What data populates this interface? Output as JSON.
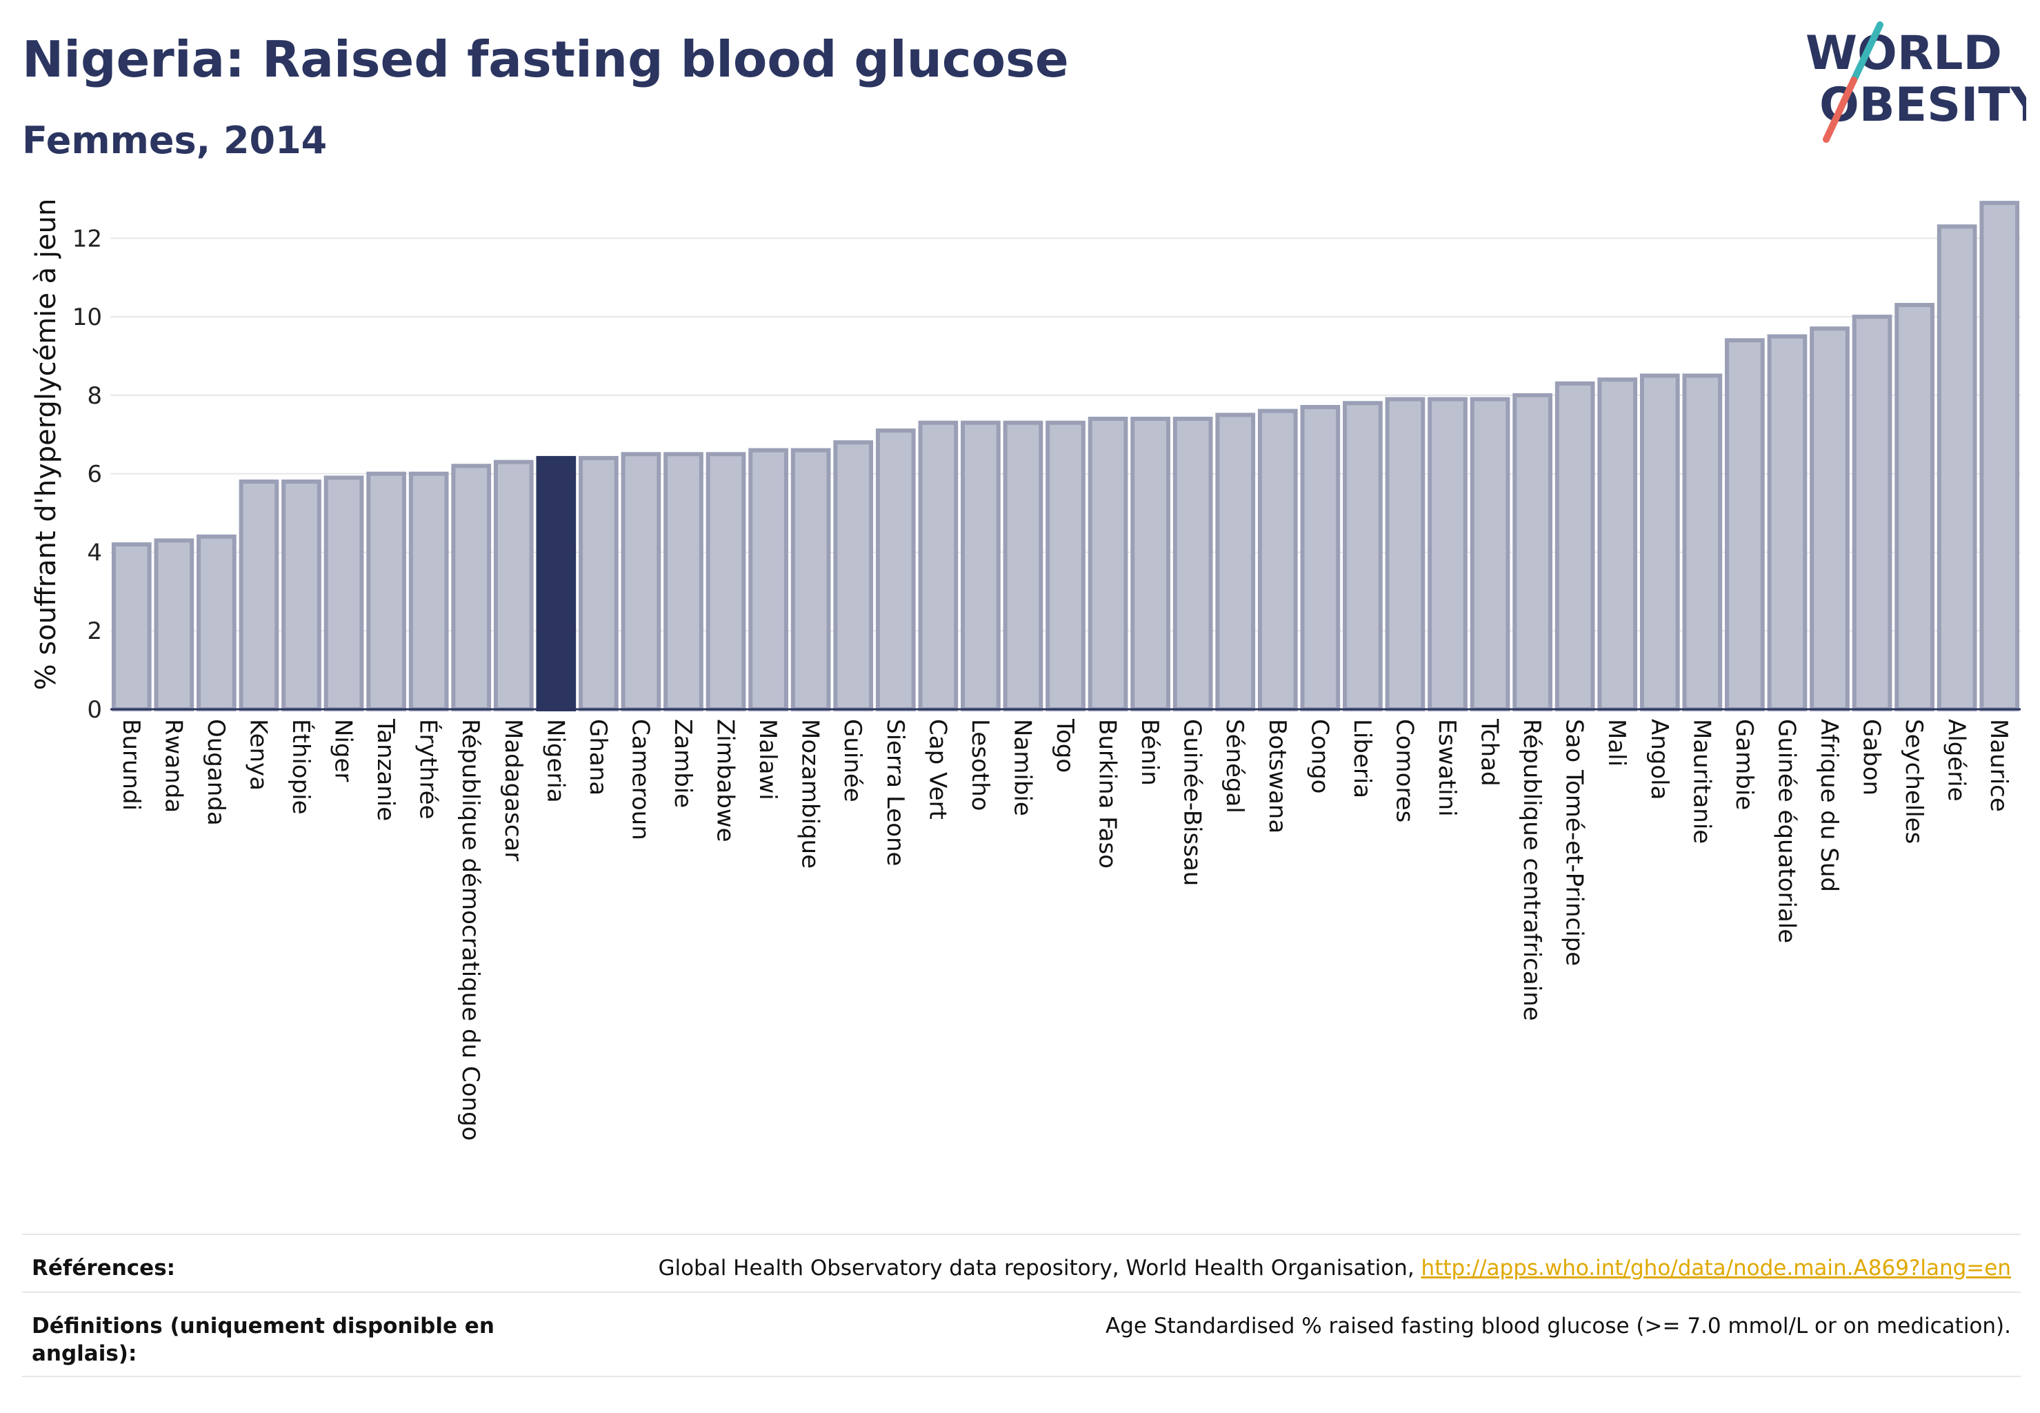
{
  "header": {
    "title": "Nigeria: Raised fasting blood glucose",
    "subtitle": "Femmes, 2014"
  },
  "logo": {
    "line1": "WORLD",
    "line2": "OBESITY",
    "colors": {
      "text": "#2b3560",
      "slash_teal": "#3bb5b8",
      "slash_coral": "#e8675a"
    }
  },
  "colors": {
    "bar_fill": "#bcc0cf",
    "bar_stroke": "#9a9fb6",
    "highlight": "#2b3560",
    "gridline": "#e6e6ea",
    "axis": "#2b3560"
  },
  "chart_data": {
    "type": "bar",
    "title": "Nigeria: Raised fasting blood glucose",
    "subtitle": "Femmes, 2014",
    "xlabel": "",
    "ylabel": "% souffrant d'hyperglycémie à jeun",
    "ylim": [
      0,
      13.5
    ],
    "yticks": [
      0,
      2,
      4,
      6,
      8,
      10,
      12
    ],
    "grid": true,
    "highlight_category": "Nigeria",
    "categories": [
      "Burundi",
      "Rwanda",
      "Ouganda",
      "Kenya",
      "Éthiopie",
      "Niger",
      "Tanzanie",
      "Érythrée",
      "République démocratique du Congo",
      "Madagascar",
      "Nigeria",
      "Ghana",
      "Cameroun",
      "Zambie",
      "Zimbabwe",
      "Malawi",
      "Mozambique",
      "Guinée",
      "Sierra Leone",
      "Cap Vert",
      "Lesotho",
      "Namibie",
      "Togo",
      "Burkina Faso",
      "Bénin",
      "Guinée-Bissau",
      "Sénégal",
      "Botswana",
      "Congo",
      "Liberia",
      "Comores",
      "Eswatini",
      "Tchad",
      "République centrafricaine",
      "Sao Tomé-et-Principe",
      "Mali",
      "Angola",
      "Mauritanie",
      "Gambie",
      "Guinée équatoriale",
      "Afrique du Sud",
      "Gabon",
      "Seychelles",
      "Algérie",
      "Maurice"
    ],
    "values": [
      4.2,
      4.3,
      4.4,
      5.8,
      5.8,
      5.9,
      6.0,
      6.0,
      6.2,
      6.3,
      6.4,
      6.4,
      6.5,
      6.5,
      6.5,
      6.6,
      6.6,
      6.8,
      7.1,
      7.3,
      7.3,
      7.3,
      7.3,
      7.4,
      7.4,
      7.4,
      7.5,
      7.6,
      7.7,
      7.8,
      7.9,
      7.9,
      7.9,
      8.0,
      8.3,
      8.4,
      8.5,
      8.5,
      9.4,
      9.5,
      9.7,
      10.0,
      10.3,
      12.3,
      12.9
    ]
  },
  "references": {
    "label": "Références:",
    "text": "Global Health Observatory data repository, World Health Organisation, ",
    "link": "http://apps.who.int/gho/data/node.main.A869?lang=en"
  },
  "definitions": {
    "label": "Définitions (uniquement disponible en anglais):",
    "text": "Age Standardised % raised fasting blood glucose (>= 7.0 mmol/L or on medication)."
  }
}
